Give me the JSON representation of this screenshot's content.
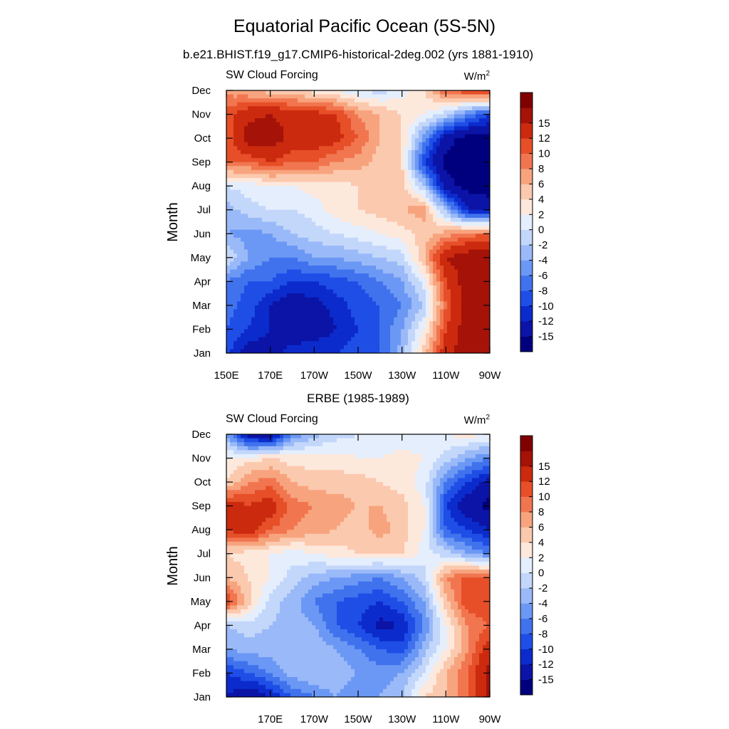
{
  "figure": {
    "title": "Equatorial Pacific Ocean (5S-5N)"
  },
  "colorbar": {
    "colors": [
      "#00007f",
      "#0b14a6",
      "#0c2bcc",
      "#1e4ee6",
      "#4072ee",
      "#6b98f4",
      "#9ab9f8",
      "#c3d7fb",
      "#e4eefd",
      "#fde8dc",
      "#fbc9ae",
      "#f7a47e",
      "#f17650",
      "#e64f28",
      "#cb2a0e",
      "#a41208",
      "#800000"
    ],
    "labels": [
      "-15",
      "-12",
      "-10",
      "-8",
      "-6",
      "-4",
      "-2",
      "0",
      "2",
      "4",
      "6",
      "8",
      "10",
      "12",
      "15"
    ]
  },
  "chart_data": [
    {
      "type": "heatmap",
      "subtitle": "b.e21.BHIST.f19_g17.CMIP6-historical-2deg.002 (yrs 1881-1910)",
      "variable": "SW Cloud Forcing",
      "units": "W/m",
      "units_sup": "2",
      "ylabel": "Month",
      "x_ticks": [
        "150E",
        "170E",
        "170W",
        "150W",
        "130W",
        "110W",
        "90W"
      ],
      "y_ticks": [
        "Jan",
        "Feb",
        "Mar",
        "Apr",
        "May",
        "Jun",
        "Jul",
        "Aug",
        "Sep",
        "Oct",
        "Nov",
        "Dec"
      ],
      "x_range": [
        "150E",
        "90W"
      ],
      "data_x_degE": [
        150,
        160,
        170,
        180,
        190,
        200,
        210,
        220,
        230,
        240,
        250,
        260,
        270
      ],
      "values_by_month": [
        [
          -9,
          -14,
          -13,
          -11,
          -10,
          -10,
          -9,
          -8,
          -3,
          5,
          14,
          17,
          17
        ],
        [
          -8,
          -10,
          -12,
          -14,
          -14,
          -12,
          -10,
          -8,
          -4,
          2,
          12,
          17,
          17
        ],
        [
          -7,
          -9,
          -12,
          -14,
          -13,
          -11,
          -9,
          -8,
          -6,
          -2,
          10,
          17,
          17
        ],
        [
          -6,
          -8,
          -8,
          -10,
          -10,
          -9,
          -8,
          -6,
          -4,
          1,
          12,
          17,
          17
        ],
        [
          0,
          -4,
          -6,
          -6,
          -4,
          -4,
          -3,
          -2,
          -1,
          6,
          15,
          17,
          17
        ],
        [
          -4,
          -5,
          -4,
          -2,
          -1,
          0,
          1,
          2,
          3,
          5,
          7,
          9,
          10
        ],
        [
          -3,
          -1,
          0,
          0,
          1,
          3,
          4,
          5,
          6,
          7,
          -3,
          -12,
          -14
        ],
        [
          0,
          1,
          2,
          2,
          3,
          3,
          4,
          5,
          5,
          -2,
          -14,
          -16,
          -16
        ],
        [
          10,
          10,
          12,
          10,
          10,
          8,
          7,
          5,
          4,
          -10,
          -16,
          -16,
          -16
        ],
        [
          10,
          17,
          17,
          14,
          14,
          13,
          10,
          6,
          4,
          -5,
          -14,
          -16,
          -16
        ],
        [
          11,
          14,
          15,
          14,
          13,
          12,
          8,
          6,
          4,
          2,
          -1,
          -6,
          -10
        ],
        [
          7,
          6,
          5,
          4,
          3,
          2,
          0,
          -1,
          1,
          4,
          10,
          12,
          14
        ]
      ]
    },
    {
      "type": "heatmap",
      "subtitle": "ERBE (1985-1989)",
      "variable": "SW Cloud Forcing",
      "units": "W/m",
      "units_sup": "2",
      "ylabel": "Month",
      "x_ticks": [
        "170E",
        "170W",
        "150W",
        "130W",
        "110W",
        "90W"
      ],
      "y_ticks": [
        "Jan",
        "Feb",
        "Mar",
        "Apr",
        "May",
        "Jun",
        "Jul",
        "Aug",
        "Sep",
        "Oct",
        "Nov",
        "Dec"
      ],
      "x_range": [
        "150E",
        "90W"
      ],
      "data_x_degE": [
        150,
        160,
        170,
        180,
        190,
        200,
        210,
        220,
        230,
        240,
        250,
        260,
        270
      ],
      "values_by_month": [
        [
          -12,
          -15,
          -12,
          -8,
          -6,
          -4,
          -6,
          -4,
          -2,
          4,
          6,
          10,
          16
        ],
        [
          -10,
          -8,
          -6,
          -3,
          -2,
          -2,
          -4,
          -5,
          -4,
          0,
          6,
          10,
          16
        ],
        [
          -4,
          -3,
          -3,
          -2,
          -2,
          -4,
          -6,
          -8,
          -9,
          -3,
          2,
          8,
          14
        ],
        [
          -2,
          -1,
          -2,
          -3,
          -4,
          -8,
          -10,
          -13,
          -12,
          -6,
          2,
          8,
          10
        ],
        [
          12,
          5,
          -1,
          -3,
          -6,
          -8,
          -9,
          -10,
          -8,
          -4,
          5,
          12,
          12
        ],
        [
          6,
          4,
          2,
          -1,
          -3,
          -4,
          -5,
          -6,
          -4,
          -1,
          8,
          11,
          10
        ],
        [
          4,
          3,
          2,
          1,
          2,
          3,
          4,
          4,
          4,
          1,
          -1,
          -4,
          -6
        ],
        [
          12,
          14,
          10,
          8,
          7,
          6,
          5,
          7,
          5,
          2,
          -8,
          -10,
          -12
        ],
        [
          14,
          12,
          14,
          9,
          8,
          7,
          6,
          6,
          5,
          2,
          -10,
          -14,
          -16
        ],
        [
          4,
          8,
          9,
          6,
          5,
          5,
          5,
          4,
          3,
          1,
          -6,
          -10,
          -13
        ],
        [
          2,
          3,
          4,
          3,
          3,
          3,
          2,
          2,
          3,
          2,
          -1,
          -4,
          -6
        ],
        [
          -4,
          -14,
          -15,
          -6,
          -3,
          -1,
          0,
          0,
          0,
          1,
          2,
          3,
          2
        ]
      ]
    }
  ]
}
